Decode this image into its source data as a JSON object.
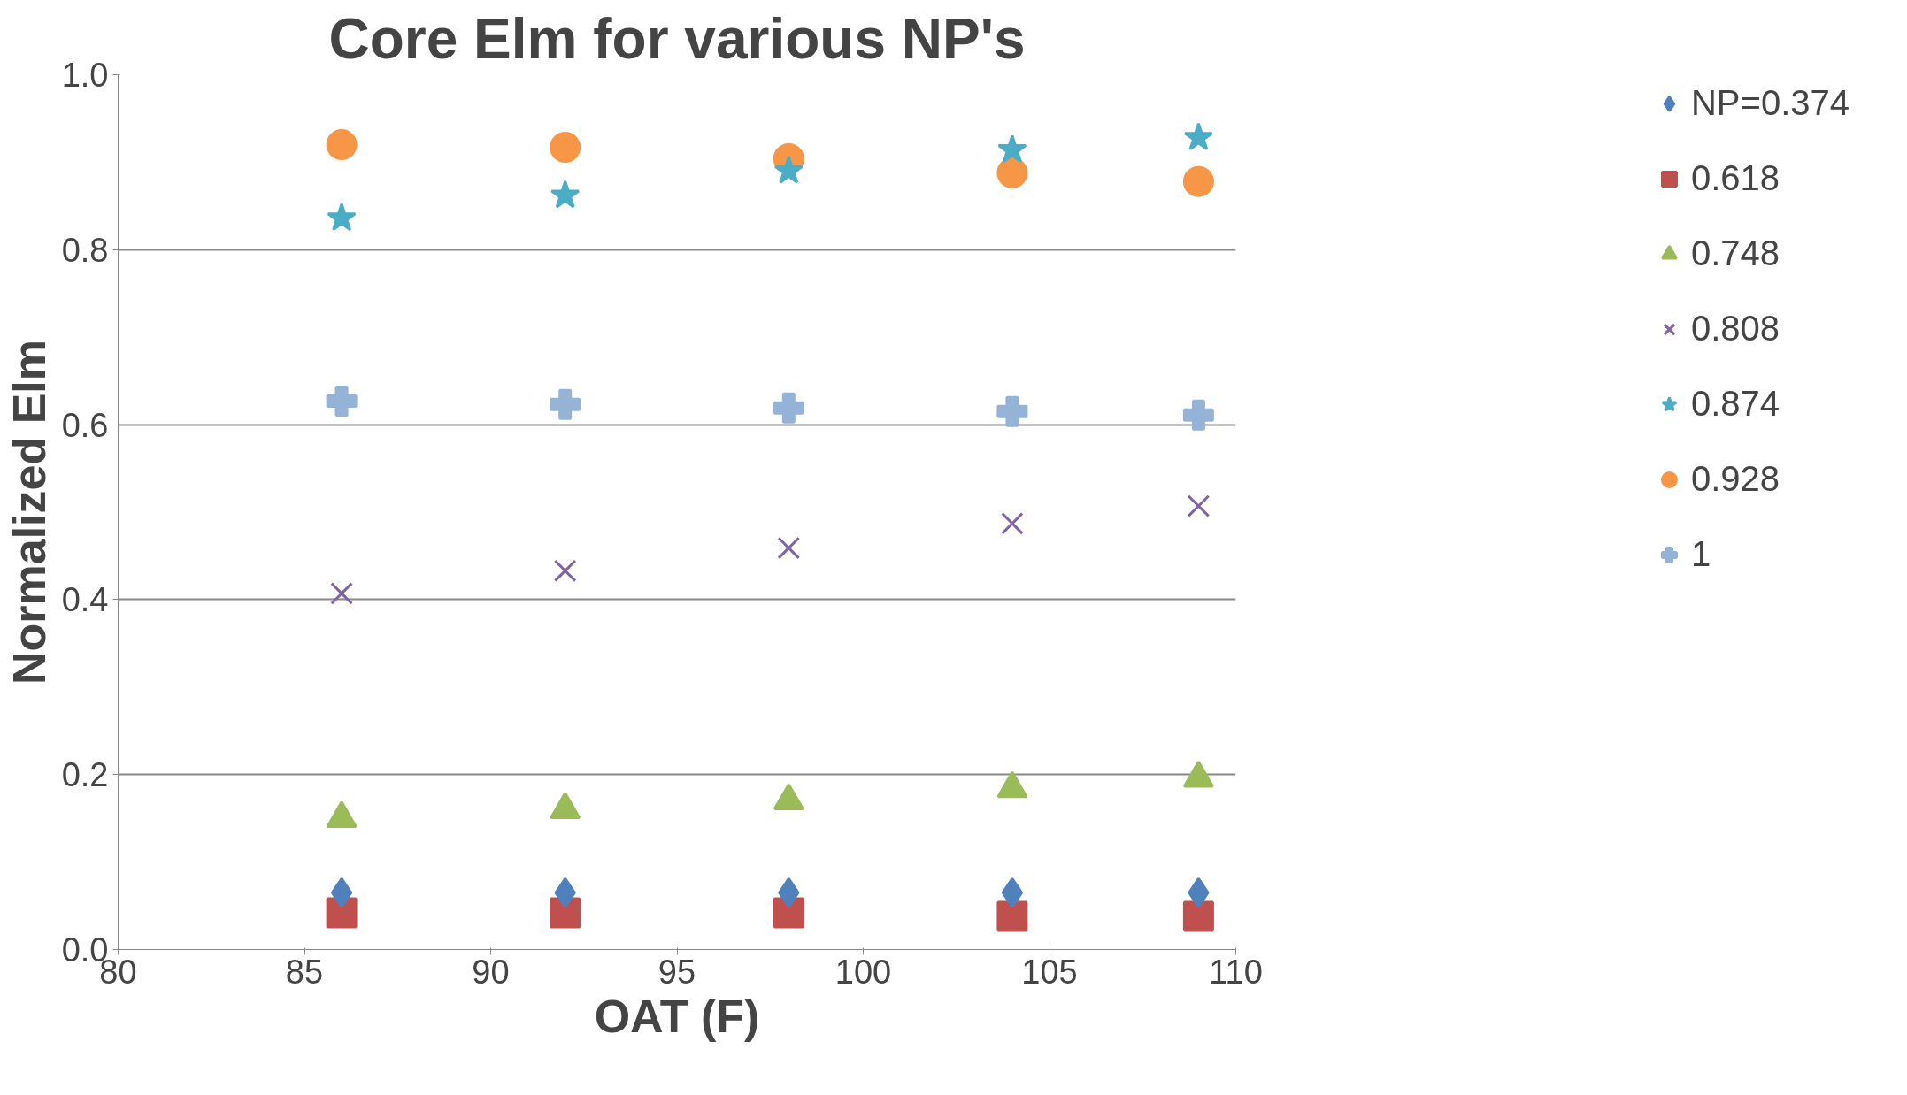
{
  "chart_data": {
    "type": "scatter",
    "title": "Core Elm for various NP's",
    "xlabel": "OAT (F)",
    "ylabel": "Normalized Elm",
    "x": [
      86,
      92,
      98,
      104,
      109
    ],
    "xlim": [
      80,
      110
    ],
    "xticks": [
      80,
      85,
      90,
      95,
      100,
      105,
      110
    ],
    "ylim": [
      0,
      1
    ],
    "yticks": [
      {
        "value": 0,
        "label": "0.0"
      },
      {
        "value": 0.2,
        "label": "0.2"
      },
      {
        "value": 0.4,
        "label": "0.4"
      },
      {
        "value": 0.6,
        "label": "0.6"
      },
      {
        "value": 0.8,
        "label": "0.8"
      },
      {
        "value": 1,
        "label": "1.0"
      }
    ],
    "grid": "y",
    "legend": "right",
    "series": [
      {
        "name": "NP=0.374",
        "color": "#4f81bd",
        "marker": "diamond",
        "values": [
          0.065,
          0.065,
          0.065,
          0.065,
          0.065
        ]
      },
      {
        "name": "0.618",
        "color": "#c0504d",
        "marker": "square",
        "values": [
          0.042,
          0.042,
          0.042,
          0.038,
          0.038
        ]
      },
      {
        "name": "0.748",
        "color": "#9bbb59",
        "marker": "triangle",
        "values": [
          0.15,
          0.16,
          0.17,
          0.184,
          0.196
        ]
      },
      {
        "name": "0.808",
        "color": "#8064a2",
        "marker": "x",
        "values": [
          0.407,
          0.433,
          0.459,
          0.487,
          0.507
        ]
      },
      {
        "name": "0.874",
        "color": "#4bacc6",
        "marker": "star",
        "values": [
          0.836,
          0.862,
          0.89,
          0.914,
          0.928
        ]
      },
      {
        "name": "0.928",
        "color": "#f79646",
        "marker": "circle",
        "values": [
          0.92,
          0.917,
          0.904,
          0.888,
          0.878
        ]
      },
      {
        "name": "1",
        "color": "#95b3d7",
        "marker": "cross",
        "values": [
          0.627,
          0.623,
          0.619,
          0.615,
          0.611
        ]
      }
    ]
  }
}
